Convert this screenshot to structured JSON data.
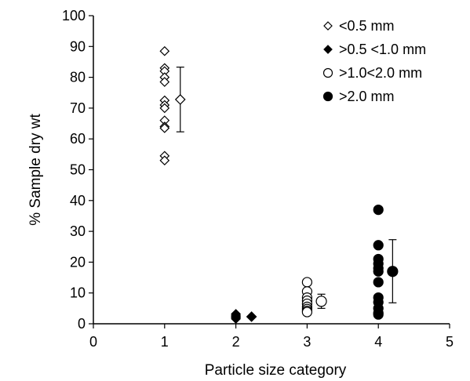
{
  "chart_data": {
    "type": "scatter",
    "title": "",
    "xlabel": "Particle size category",
    "ylabel": "% Sample dry wt",
    "xlim": [
      0,
      5
    ],
    "ylim": [
      0,
      100
    ],
    "xticks": [
      "0",
      "1",
      "2",
      "3",
      "4",
      "5"
    ],
    "yticks": [
      "0",
      "10",
      "20",
      "30",
      "40",
      "50",
      "60",
      "70",
      "80",
      "90",
      "100"
    ],
    "grid": false,
    "legend_position": "top-right",
    "series": [
      {
        "name": "<0.5 mm",
        "marker": "diamond",
        "fill": "open",
        "x": 1,
        "values": [
          88.5,
          83,
          82,
          80,
          78.5,
          72.5,
          71,
          70,
          66,
          64,
          63.5,
          54.5,
          53
        ],
        "summary": {
          "x": 1.22,
          "mean": 72.8,
          "low": 62.3,
          "high": 83.3
        }
      },
      {
        "name": ">0.5 <1.0 mm",
        "marker": "diamond",
        "fill": "solid",
        "x": 2,
        "values": [
          3.2,
          2.8,
          2.5,
          2.2,
          2.0,
          1.6
        ],
        "summary": {
          "x": 2.22,
          "mean": 2.3,
          "low": 2.1,
          "high": 2.5
        }
      },
      {
        "name": ">1.0<2.0 mm",
        "marker": "circle",
        "fill": "open",
        "x": 3,
        "values": [
          13.5,
          10.5,
          8.5,
          7.5,
          6.5,
          5.5,
          4.8,
          4.2,
          3.8
        ],
        "summary": {
          "x": 3.2,
          "mean": 7.3,
          "low": 5.0,
          "high": 9.6
        }
      },
      {
        "name": ">2.0 mm",
        "marker": "circle",
        "fill": "solid",
        "x": 4,
        "values": [
          37,
          25.5,
          21,
          19.5,
          18,
          17,
          13.5,
          8.5,
          7,
          5,
          3.5,
          3
        ],
        "summary": {
          "x": 4.2,
          "mean": 17,
          "low": 6.8,
          "high": 27.3
        }
      }
    ]
  }
}
